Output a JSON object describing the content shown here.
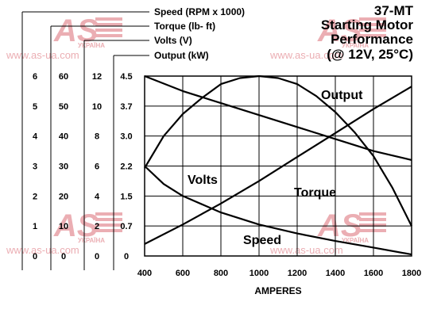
{
  "title_lines": [
    "37-MT",
    "Starting Motor",
    "Performance",
    "(@ 12V, 25°C)"
  ],
  "watermark": {
    "brand": "AS",
    "country": "УКРАЇНА",
    "url": "www.as-ua.com"
  },
  "chart_data": {
    "type": "line",
    "title": "37-MT Starting Motor Performance (@ 12V, 25°C)",
    "xlabel": "AMPERES",
    "x_ticks": [
      "400",
      "600",
      "800",
      "1000",
      "1200",
      "1400",
      "1600",
      "1800"
    ],
    "xlim": [
      400,
      1800
    ],
    "grid": true,
    "axes": [
      {
        "label": "Speed (RPM x 1000)",
        "ticks": [
          "0",
          "1",
          "2",
          "3",
          "4",
          "5",
          "6"
        ],
        "ylim": [
          0,
          6
        ]
      },
      {
        "label": "Torque (lb- ft)",
        "ticks": [
          "0",
          "10",
          "20",
          "30",
          "40",
          "50",
          "60"
        ],
        "ylim": [
          0,
          60
        ]
      },
      {
        "label": "Volts (V)",
        "ticks": [
          "0",
          "2",
          "4",
          "6",
          "8",
          "10",
          "12"
        ],
        "ylim": [
          0,
          12
        ]
      },
      {
        "label": "Output (kW)",
        "ticks": [
          "0",
          "0.7",
          "1.5",
          "2.2",
          "3.0",
          "3.7",
          "4.5"
        ],
        "ylim": [
          0,
          4.5
        ]
      }
    ],
    "series": [
      {
        "name": "Output",
        "axis": 3,
        "x": [
          400,
          500,
          600,
          700,
          800,
          900,
          1000,
          1100,
          1200,
          1300,
          1400,
          1500,
          1600,
          1700,
          1800
        ],
        "y": [
          2.2,
          3.0,
          3.55,
          3.95,
          4.3,
          4.45,
          4.5,
          4.45,
          4.3,
          4.0,
          3.6,
          3.1,
          2.5,
          1.7,
          0.75
        ]
      },
      {
        "name": "Torque",
        "axis": 1,
        "x": [
          400,
          600,
          800,
          1000,
          1200,
          1400,
          1600,
          1800
        ],
        "y": [
          4,
          10.5,
          17.5,
          25,
          33,
          41,
          49,
          56.5
        ]
      },
      {
        "name": "Volts",
        "axis": 2,
        "x": [
          400,
          600,
          800,
          1000,
          1200,
          1400,
          1600,
          1800
        ],
        "y": [
          12,
          11,
          10.2,
          9.4,
          8.6,
          7.8,
          7.0,
          6.4
        ]
      },
      {
        "name": "Speed",
        "axis": 0,
        "x": [
          400,
          500,
          600,
          800,
          1000,
          1200,
          1400,
          1600,
          1800
        ],
        "y": [
          3.0,
          2.4,
          2.0,
          1.45,
          1.05,
          0.75,
          0.5,
          0.28,
          0.05
        ]
      }
    ]
  }
}
